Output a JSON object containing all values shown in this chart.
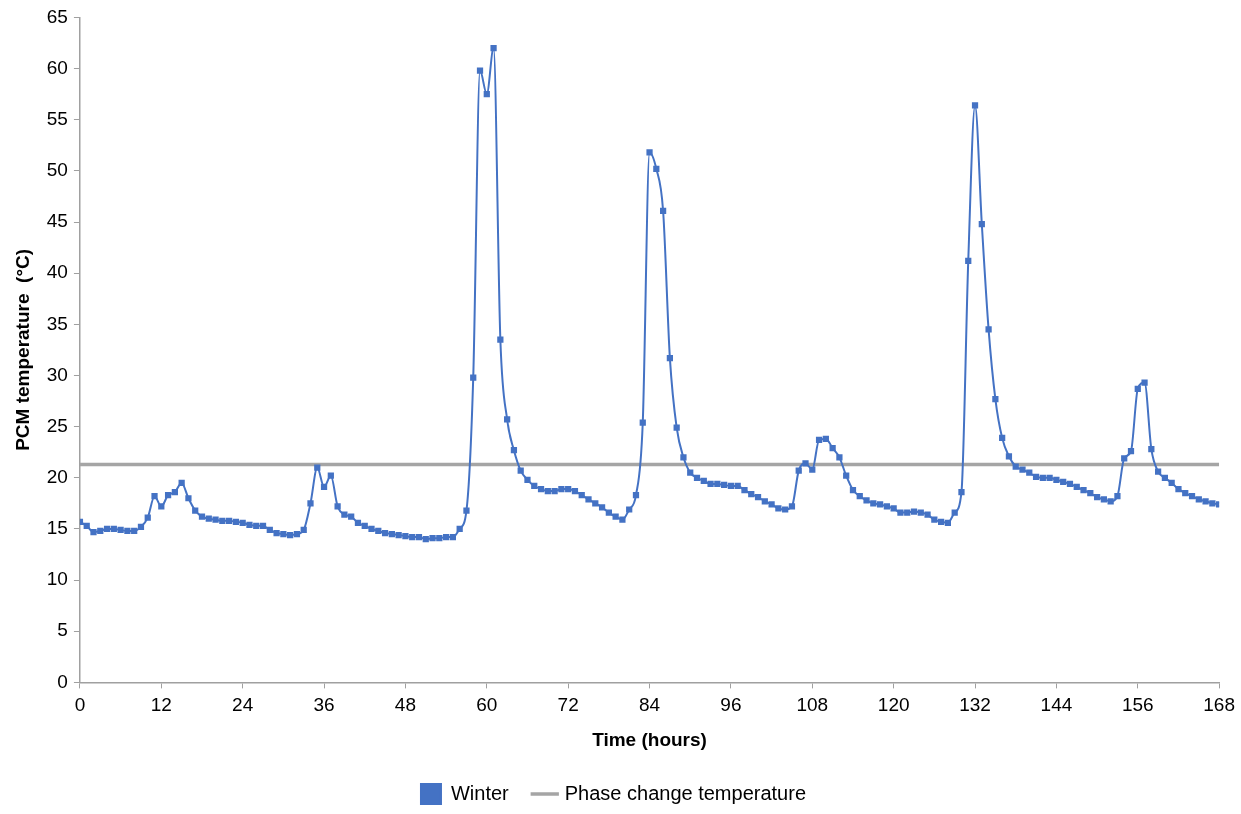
{
  "chart_data": {
    "type": "line",
    "xlabel": "Time (hours)",
    "ylabel": "PCM temperature  (°C)",
    "x": [
      0,
      1,
      2,
      3,
      4,
      5,
      6,
      7,
      8,
      9,
      10,
      11,
      12,
      13,
      14,
      15,
      16,
      17,
      18,
      19,
      20,
      21,
      22,
      23,
      24,
      25,
      26,
      27,
      28,
      29,
      30,
      31,
      32,
      33,
      34,
      35,
      36,
      37,
      38,
      39,
      40,
      41,
      42,
      43,
      44,
      45,
      46,
      47,
      48,
      49,
      50,
      51,
      52,
      53,
      54,
      55,
      56,
      57,
      58,
      59,
      60,
      61,
      62,
      63,
      64,
      65,
      66,
      67,
      68,
      69,
      70,
      71,
      72,
      73,
      74,
      75,
      76,
      77,
      78,
      79,
      80,
      81,
      82,
      83,
      84,
      85,
      86,
      87,
      88,
      89,
      90,
      91,
      92,
      93,
      94,
      95,
      96,
      97,
      98,
      99,
      100,
      101,
      102,
      103,
      104,
      105,
      106,
      107,
      108,
      109,
      110,
      111,
      112,
      113,
      114,
      115,
      116,
      117,
      118,
      119,
      120,
      121,
      122,
      123,
      124,
      125,
      126,
      127,
      128,
      129,
      130,
      131,
      132,
      133,
      134,
      135,
      136,
      137,
      138,
      139,
      140,
      141,
      142,
      143,
      144,
      145,
      146,
      147,
      148,
      149,
      150,
      151,
      152,
      153,
      154,
      155,
      156,
      157,
      158,
      159,
      160,
      161,
      162,
      163,
      164,
      165,
      166,
      167,
      168
    ],
    "series": [
      {
        "name": "Winter",
        "color": "#4472c4",
        "values": [
          15.7,
          15.3,
          14.7,
          14.8,
          15.0,
          15.0,
          14.9,
          14.8,
          14.8,
          15.2,
          16.1,
          18.2,
          17.2,
          18.3,
          18.6,
          19.5,
          18.0,
          16.8,
          16.2,
          16.0,
          15.9,
          15.8,
          15.8,
          15.7,
          15.6,
          15.4,
          15.3,
          15.3,
          14.9,
          14.6,
          14.5,
          14.4,
          14.5,
          14.9,
          17.5,
          21.0,
          19.1,
          20.2,
          17.2,
          16.4,
          16.2,
          15.6,
          15.3,
          15.0,
          14.8,
          14.6,
          14.5,
          14.4,
          14.3,
          14.2,
          14.2,
          14.0,
          14.1,
          14.1,
          14.2,
          14.2,
          15.0,
          16.8,
          29.8,
          59.8,
          57.5,
          62.0,
          33.5,
          25.7,
          22.7,
          20.7,
          19.8,
          19.2,
          18.9,
          18.7,
          18.7,
          18.9,
          18.9,
          18.7,
          18.3,
          17.9,
          17.5,
          17.1,
          16.6,
          16.2,
          15.9,
          16.9,
          18.3,
          25.4,
          51.8,
          50.2,
          46.1,
          31.7,
          24.9,
          22.0,
          20.5,
          20.0,
          19.7,
          19.4,
          19.4,
          19.3,
          19.2,
          19.2,
          18.8,
          18.4,
          18.1,
          17.7,
          17.4,
          17.0,
          16.9,
          17.2,
          20.7,
          21.4,
          20.8,
          23.7,
          23.8,
          22.9,
          22.0,
          20.2,
          18.8,
          18.2,
          17.8,
          17.5,
          17.4,
          17.2,
          17.0,
          16.6,
          16.6,
          16.7,
          16.6,
          16.4,
          15.9,
          15.7,
          15.6,
          16.6,
          18.6,
          41.2,
          56.4,
          44.8,
          34.5,
          27.7,
          23.9,
          22.1,
          21.1,
          20.8,
          20.5,
          20.1,
          20.0,
          20.0,
          19.8,
          19.6,
          19.4,
          19.1,
          18.8,
          18.5,
          18.1,
          17.9,
          17.7,
          18.2,
          21.9,
          22.6,
          28.7,
          29.3,
          22.8,
          20.6,
          20.0,
          19.5,
          18.9,
          18.5,
          18.2,
          17.9,
          17.7,
          17.5,
          17.4
        ]
      },
      {
        "name": "Phase change temperature",
        "color": "#a5a5a5",
        "marker": "none",
        "x": [
          0,
          168
        ],
        "values": [
          21.3,
          21.3
        ]
      }
    ],
    "xlim": [
      0,
      168
    ],
    "xticks": [
      0,
      12,
      24,
      36,
      48,
      60,
      72,
      84,
      96,
      108,
      120,
      132,
      144,
      156,
      168
    ],
    "ylim": [
      0,
      65
    ],
    "yticks": [
      0,
      5,
      10,
      15,
      20,
      25,
      30,
      35,
      40,
      45,
      50,
      55,
      60,
      65
    ],
    "grid": false,
    "legend": "bottom",
    "marker": "square"
  }
}
